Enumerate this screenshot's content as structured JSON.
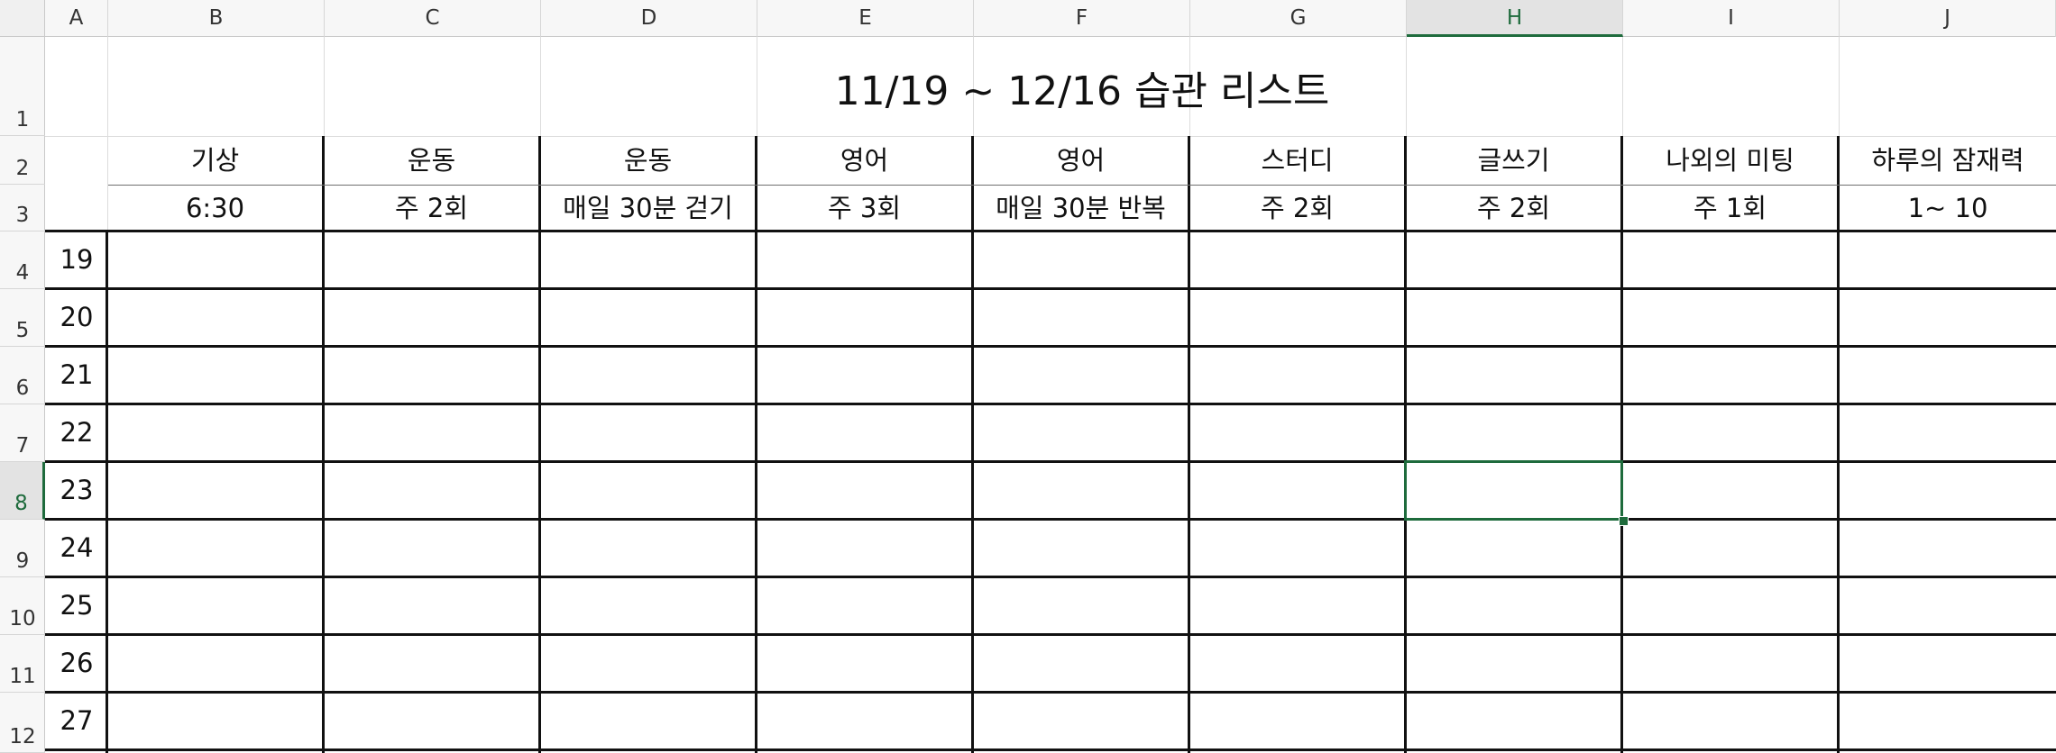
{
  "columns": [
    "A",
    "B",
    "C",
    "D",
    "E",
    "F",
    "G",
    "H",
    "I",
    "J"
  ],
  "selected_column": "H",
  "rows": [
    "1",
    "2",
    "3",
    "4",
    "5",
    "6",
    "7",
    "8",
    "9",
    "10",
    "11",
    "12"
  ],
  "selected_row": "8",
  "title": "11/19 ~ 12/16 습관 리스트",
  "habits": [
    {
      "name": "기상",
      "goal": "6:30"
    },
    {
      "name": "운동",
      "goal": "주 2회"
    },
    {
      "name": "운동",
      "goal": "매일 30분 걷기"
    },
    {
      "name": "영어",
      "goal": "주 3회"
    },
    {
      "name": "영어",
      "goal": "매일 30분 반복"
    },
    {
      "name": "스터디",
      "goal": "주 2회"
    },
    {
      "name": "글쓰기",
      "goal": "주 2회"
    },
    {
      "name": "나외의 미팅",
      "goal": "주 1회"
    },
    {
      "name": "하루의 잠재력",
      "goal": "1~ 10"
    }
  ],
  "days": [
    "19",
    "20",
    "21",
    "22",
    "23",
    "24",
    "25",
    "26",
    "27"
  ],
  "active_cell": "H8",
  "accent_color": "#1e6b3c"
}
